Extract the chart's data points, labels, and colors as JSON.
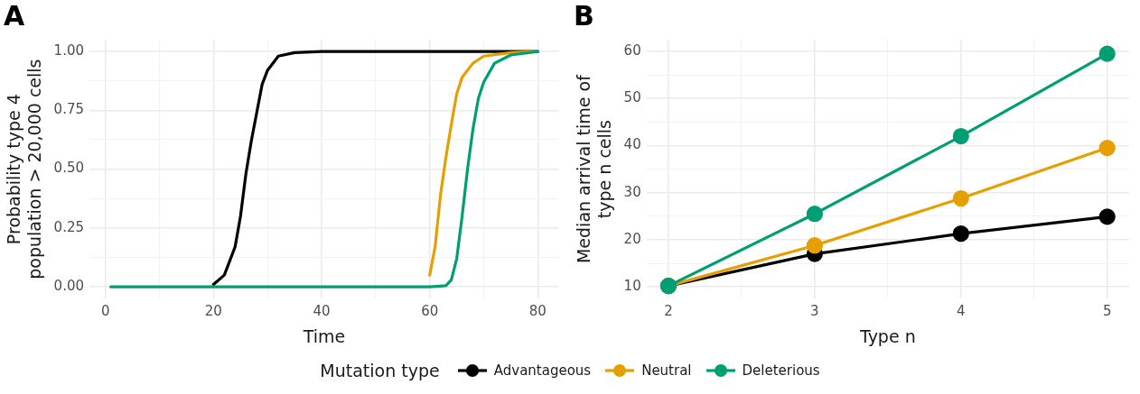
{
  "chart_data": [
    {
      "type": "line",
      "title": "A",
      "xlabel": "Time",
      "ylabel": "Probability type 4\npopulation > 20,000 cells",
      "xlim": [
        -2.95,
        83.95
      ],
      "ylim": [
        -0.05,
        1.05
      ],
      "xticks": [
        0,
        {
          "value": 10,
          "label": null
        },
        20,
        {
          "value": 30,
          "label": null
        },
        40,
        {
          "value": 50,
          "label": null
        },
        60,
        {
          "value": 70,
          "label": null
        },
        80
      ],
      "yticks": [
        {
          "value": 0,
          "label": "0.00"
        },
        {
          "value": 0.125,
          "label": null
        },
        {
          "value": 0.25,
          "label": "0.25"
        },
        {
          "value": 0.375,
          "label": null
        },
        {
          "value": 0.5,
          "label": "0.50"
        },
        {
          "value": 0.625,
          "label": null
        },
        {
          "value": 0.75,
          "label": "0.75"
        },
        {
          "value": 0.875,
          "label": null
        },
        {
          "value": 1,
          "label": "1.00"
        }
      ],
      "grid": true,
      "legend": "bottom",
      "marker": "none",
      "line_style": "solid",
      "series": [
        {
          "name": "Advantageous",
          "color": "#000000",
          "x": [
            20,
            22,
            24,
            25,
            26,
            27,
            28,
            29,
            30,
            32,
            35,
            40,
            50,
            60,
            70,
            80
          ],
          "values": [
            0.01,
            0.05,
            0.17,
            0.3,
            0.48,
            0.62,
            0.74,
            0.86,
            0.92,
            0.98,
            0.995,
            1,
            1,
            1,
            1,
            1
          ]
        },
        {
          "name": "Neutral",
          "color": "#e69f00",
          "x": [
            60,
            61,
            62,
            63,
            64,
            65,
            66,
            68,
            70,
            75,
            80
          ],
          "values": [
            0.05,
            0.17,
            0.39,
            0.55,
            0.69,
            0.82,
            0.89,
            0.95,
            0.98,
            0.995,
            1
          ]
        },
        {
          "name": "Deleterious",
          "color": "#009e73",
          "x": [
            1,
            20,
            40,
            60,
            63,
            64,
            65,
            66,
            67,
            68,
            69,
            70,
            72,
            75,
            80
          ],
          "values": [
            0,
            0,
            0,
            0,
            0.005,
            0.03,
            0.12,
            0.3,
            0.5,
            0.67,
            0.8,
            0.87,
            0.95,
            0.985,
            1
          ]
        }
      ]
    },
    {
      "type": "line",
      "title": "B",
      "xlabel": "Type n",
      "ylabel": "Median arrival time of\ntype n cells",
      "xlim": [
        1.85,
        5.15
      ],
      "ylim": [
        7.5,
        62.5
      ],
      "xticks": [
        2,
        {
          "value": 2.5,
          "label": null
        },
        3,
        {
          "value": 3.5,
          "label": null
        },
        4,
        {
          "value": 4.5,
          "label": null
        },
        5
      ],
      "yticks": [
        10,
        {
          "value": 15,
          "label": null
        },
        20,
        {
          "value": 25,
          "label": null
        },
        30,
        {
          "value": 35,
          "label": null
        },
        40,
        {
          "value": 45,
          "label": null
        },
        50,
        {
          "value": 55,
          "label": null
        },
        60
      ],
      "grid": true,
      "legend": "bottom",
      "legend_title": "Mutation type",
      "marker": "circle",
      "line_style": "solid",
      "x": [
        2,
        3,
        4,
        5
      ],
      "series": [
        {
          "name": "Advantageous",
          "color": "#000000",
          "values": [
            10.2,
            17,
            21.3,
            24.9
          ]
        },
        {
          "name": "Neutral",
          "color": "#e69f00",
          "values": [
            10.2,
            18.8,
            28.8,
            39.5
          ]
        },
        {
          "name": "Deleterious",
          "color": "#009e73",
          "values": [
            10.2,
            25.5,
            42,
            59.5
          ]
        }
      ]
    }
  ]
}
